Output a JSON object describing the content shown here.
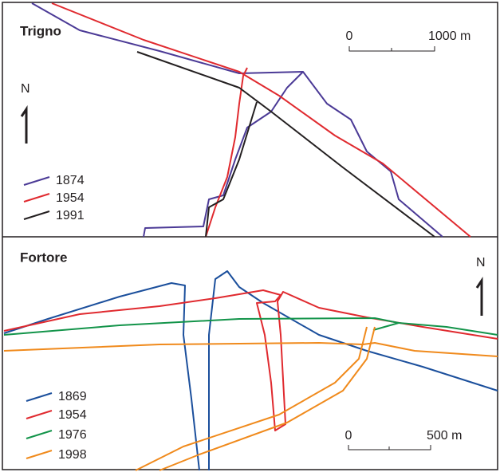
{
  "panels": [
    {
      "title": "Trigno",
      "north": "N",
      "scale": {
        "start": "0",
        "end": "1000 m"
      },
      "legend": [
        "1874",
        "1954",
        "1991"
      ]
    },
    {
      "title": "Fortore",
      "north": "N",
      "scale": {
        "start": "0",
        "end": "500 m"
      },
      "legend": [
        "1869",
        "1954",
        "1976",
        "1998"
      ]
    }
  ]
}
